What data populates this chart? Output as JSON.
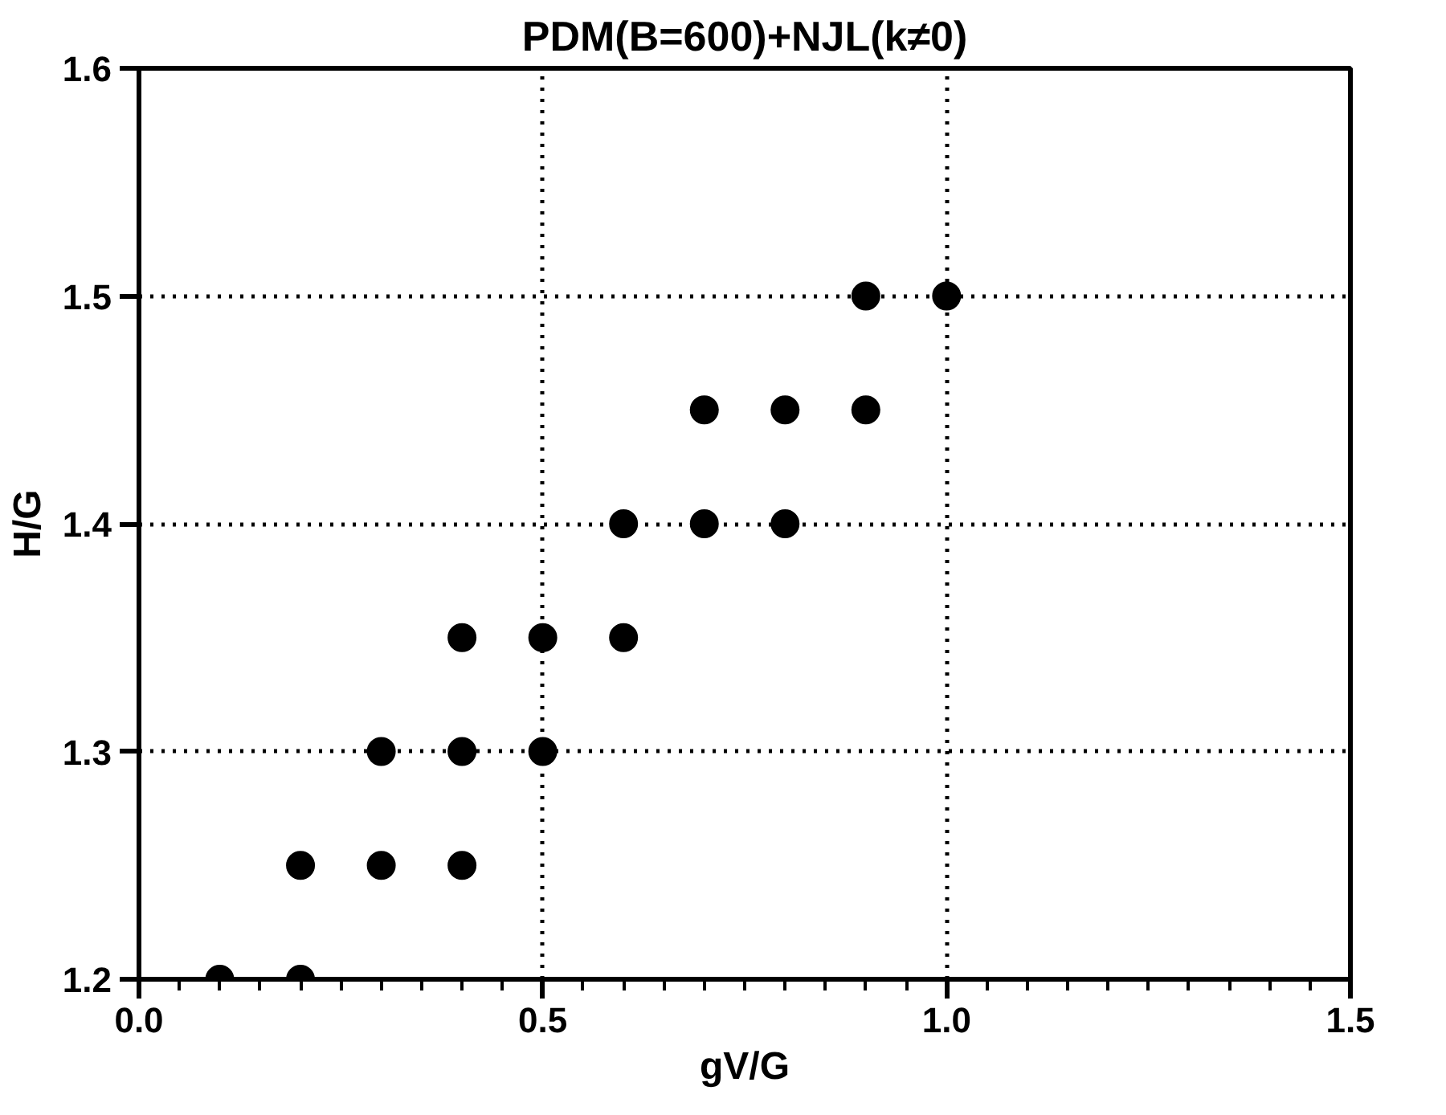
{
  "chart_data": {
    "type": "scatter",
    "title": "PDM(B=600)+NJL(k≠0)",
    "xlabel": "gV/G",
    "ylabel": "H/G",
    "x": [
      0.1,
      0.2,
      0.2,
      0.3,
      0.4,
      0.3,
      0.4,
      0.5,
      0.4,
      0.5,
      0.6,
      0.6,
      0.7,
      0.8,
      0.7,
      0.8,
      0.9,
      0.9,
      1.0
    ],
    "series": [
      {
        "color": "#000000",
        "values": [
          1.2,
          1.2,
          1.25,
          1.25,
          1.25,
          1.3,
          1.3,
          1.3,
          1.35,
          1.35,
          1.35,
          1.4,
          1.4,
          1.4,
          1.45,
          1.45,
          1.45,
          1.5,
          1.5
        ]
      }
    ],
    "xlim": [
      0.0,
      1.5
    ],
    "ylim": [
      1.2,
      1.6
    ],
    "xticks": [
      {
        "value": 0.0,
        "label": "0.0"
      },
      0.5,
      {
        "value": 1.0,
        "label": "1.0"
      },
      1.5
    ],
    "yticks": [
      1.2,
      1.3,
      1.4,
      1.5,
      1.6
    ],
    "grid": true,
    "marker": "circle"
  }
}
